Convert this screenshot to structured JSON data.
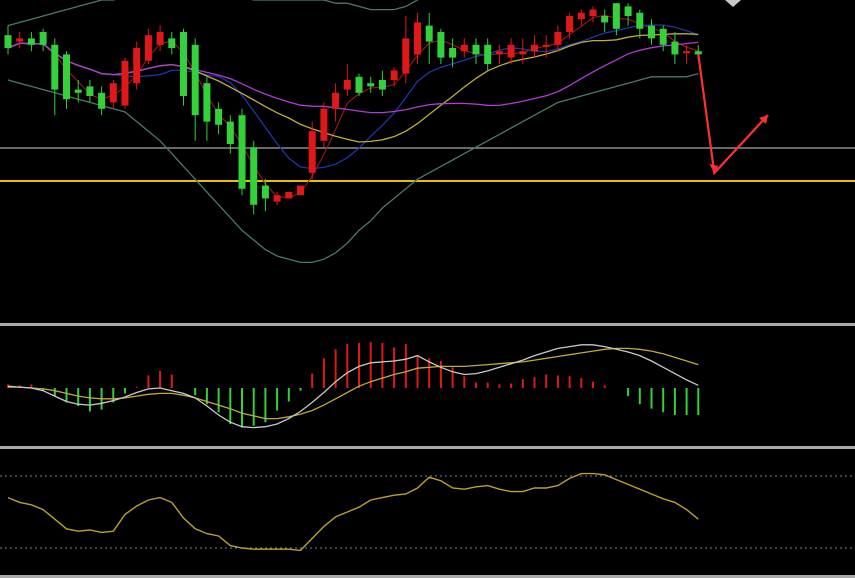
{
  "colors": {
    "background": "#000000",
    "up": "#e01818",
    "down": "#33d13a",
    "bb_band": "#4a7a62",
    "ma_magenta": "#b23bd6",
    "ma_blue": "#2233aa",
    "ma_khaki": "#bfae3a",
    "ma_red": "#a31616",
    "gray_line": "#a7a7a7",
    "gold_line": "#e6c000",
    "divider": "#a9a9a9",
    "arrow": "#ff3030",
    "macd_line": "#c9c9c9",
    "signal_line": "#c0a93a",
    "rsi_line": "#b9a12e"
  },
  "chart_data": [
    {
      "type": "candlestick",
      "title": "",
      "grid": false,
      "ylim": [
        0,
        100
      ],
      "x": [
        1,
        2,
        3,
        4,
        5,
        6,
        7,
        8,
        9,
        10,
        11,
        12,
        13,
        14,
        15,
        16,
        17,
        18,
        19,
        20,
        21,
        22,
        23,
        24,
        25,
        26,
        27,
        28,
        29,
        30,
        31,
        32,
        33,
        34,
        35,
        36,
        37,
        38,
        39,
        40,
        41,
        42,
        43,
        44,
        45,
        46,
        47,
        48,
        49,
        50,
        51,
        52,
        53,
        54,
        55,
        56,
        57,
        58,
        59,
        60
      ],
      "open": [
        89,
        87,
        88,
        90,
        86,
        83,
        72,
        73,
        71,
        68,
        67,
        74,
        81,
        86,
        88,
        90,
        86,
        74,
        66,
        62,
        64,
        54,
        42,
        37,
        38,
        39,
        46,
        56,
        66,
        72,
        76,
        74,
        75,
        75,
        77,
        83,
        92,
        90,
        85,
        84,
        86,
        86,
        83,
        82,
        83,
        84,
        86,
        86,
        90,
        94,
        95,
        95,
        99,
        98,
        96,
        92,
        91,
        87,
        84,
        84
      ],
      "close": [
        85,
        88,
        86,
        86,
        72,
        69,
        71,
        70,
        66,
        74,
        81,
        85,
        89,
        90,
        85,
        70,
        64,
        62,
        61,
        55,
        41,
        36,
        38,
        39,
        40,
        42,
        59,
        66,
        71,
        75,
        71,
        73,
        72,
        78,
        88,
        93,
        87,
        82,
        82,
        86,
        83,
        80,
        84,
        86,
        84,
        86,
        86,
        90,
        95,
        96,
        97,
        93,
        91,
        95,
        91,
        88,
        86,
        83,
        84,
        83
      ],
      "high": [
        92,
        90,
        90,
        91,
        88,
        84,
        75,
        75,
        73,
        75,
        82,
        87,
        91,
        92,
        90,
        91,
        88,
        76,
        68,
        64,
        66,
        56,
        44,
        40,
        40,
        42,
        62,
        68,
        74,
        80,
        77,
        76,
        78,
        79,
        95,
        96,
        96,
        91,
        88,
        88,
        88,
        88,
        86,
        88,
        88,
        89,
        89,
        92,
        96,
        97,
        98,
        97,
        99,
        99,
        97,
        94,
        92,
        90,
        86,
        86
      ],
      "low": [
        83,
        85,
        84,
        84,
        64,
        66,
        68,
        68,
        64,
        66,
        66,
        72,
        80,
        84,
        83,
        67,
        56,
        56,
        58,
        52,
        39,
        33,
        34,
        36,
        38,
        40,
        44,
        54,
        62,
        70,
        70,
        71,
        70,
        73,
        74,
        80,
        80,
        80,
        79,
        82,
        80,
        78,
        80,
        80,
        80,
        82,
        82,
        84,
        88,
        92,
        93,
        90,
        89,
        92,
        88,
        86,
        84,
        80,
        80,
        81
      ],
      "bollinger_upper": [
        92,
        93,
        94,
        95,
        96,
        97,
        98,
        99,
        100,
        100,
        101,
        101,
        101,
        102,
        102,
        102,
        102,
        102,
        101,
        101,
        101,
        100,
        100,
        100,
        100,
        100,
        100,
        100,
        99,
        99,
        98,
        97,
        97,
        97,
        98,
        100,
        103,
        106,
        109,
        110,
        111,
        112,
        113,
        114,
        114,
        115,
        116,
        116,
        117,
        118,
        118,
        118,
        118,
        118,
        118,
        119,
        120,
        121,
        122,
        123
      ],
      "bollinger_lower": [
        75,
        74,
        73,
        72,
        71,
        70,
        69,
        68,
        67,
        66,
        65,
        62,
        59,
        56,
        52,
        48,
        44,
        40,
        36,
        32,
        28,
        25,
        22,
        20,
        19,
        18,
        18,
        19,
        21,
        24,
        28,
        31,
        35,
        38,
        41,
        44,
        46,
        48,
        50,
        52,
        54,
        56,
        58,
        60,
        62,
        64,
        66,
        68,
        69,
        70,
        71,
        72,
        73,
        74,
        75,
        76,
        76,
        76,
        76,
        77
      ]
    },
    {
      "type": "bar",
      "title": "",
      "grid": false,
      "x": [
        1,
        2,
        3,
        4,
        5,
        6,
        7,
        8,
        9,
        10,
        11,
        12,
        13,
        14,
        15,
        16,
        17,
        18,
        19,
        20,
        21,
        22,
        23,
        24,
        25,
        26,
        27,
        28,
        29,
        30,
        31,
        32,
        33,
        34,
        35,
        36,
        37,
        38,
        39,
        40,
        41,
        42,
        43,
        44,
        45,
        46,
        47,
        48,
        49,
        50,
        51,
        52,
        53,
        54,
        55,
        56,
        57,
        58,
        59,
        60
      ],
      "values": [
        0.4,
        0.3,
        0.4,
        -0.3,
        -0.9,
        -1.6,
        -2.0,
        -2.6,
        -2.4,
        -1.6,
        -0.6,
        0.1,
        1.4,
        1.9,
        1.5,
        0,
        -0.8,
        -1.8,
        -2.7,
        -4.0,
        -4.4,
        -4.2,
        -3.8,
        -2.5,
        -1.5,
        -0.3,
        1.6,
        3.3,
        4.3,
        4.9,
        5.0,
        5.1,
        5.0,
        4.5,
        4.9,
        3.5,
        3.3,
        3.0,
        2.3,
        1.3,
        0.6,
        0.6,
        0.4,
        0.5,
        1.0,
        1.2,
        1.5,
        1.4,
        1.3,
        1.1,
        0.7,
        0.3,
        0,
        -0.9,
        -1.8,
        -2.3,
        -2.7,
        -3.0,
        -3.0,
        -3.0
      ],
      "macd_line": [
        0.2,
        0.1,
        0,
        -0.3,
        -0.9,
        -1.5,
        -1.8,
        -1.9,
        -1.7,
        -1.4,
        -1.0,
        -0.5,
        -0.1,
        0,
        -0.3,
        -0.6,
        -1.1,
        -2.0,
        -3.0,
        -3.8,
        -4.3,
        -4.4,
        -4.3,
        -4.0,
        -3.4,
        -2.6,
        -1.6,
        -0.5,
        0.7,
        1.7,
        2.4,
        2.8,
        2.9,
        3.0,
        3.2,
        3.6,
        2.9,
        2.3,
        1.8,
        1.5,
        1.6,
        1.9,
        2.3,
        2.7,
        3.1,
        3.6,
        4.0,
        4.4,
        4.6,
        4.8,
        4.8,
        4.6,
        4.3,
        4.0,
        3.6,
        3.0,
        2.3,
        1.6,
        0.9,
        0.3
      ],
      "signal_line": [
        0.1,
        0.1,
        0,
        -0.1,
        -0.3,
        -0.6,
        -0.9,
        -1.1,
        -1.2,
        -1.2,
        -1.1,
        -0.9,
        -0.7,
        -0.6,
        -0.6,
        -0.8,
        -1.1,
        -1.5,
        -1.9,
        -2.3,
        -2.8,
        -3.1,
        -3.4,
        -3.4,
        -3.2,
        -2.9,
        -2.5,
        -1.9,
        -1.2,
        -0.5,
        0.2,
        0.7,
        1.1,
        1.5,
        1.8,
        2.2,
        2.3,
        2.4,
        2.4,
        2.4,
        2.5,
        2.6,
        2.7,
        2.8,
        2.9,
        3.1,
        3.3,
        3.5,
        3.7,
        3.9,
        4.1,
        4.3,
        4.4,
        4.4,
        4.3,
        4.1,
        3.8,
        3.4,
        3.0,
        2.6
      ]
    },
    {
      "type": "line",
      "title": "",
      "grid": true,
      "x": [
        1,
        2,
        3,
        4,
        5,
        6,
        7,
        8,
        9,
        10,
        11,
        12,
        13,
        14,
        15,
        16,
        17,
        18,
        19,
        20,
        21,
        22,
        23,
        24,
        25,
        26,
        27,
        28,
        29,
        30,
        31,
        32,
        33,
        34,
        35,
        36,
        37,
        38,
        39,
        40,
        41,
        42,
        43,
        44,
        45,
        46,
        47,
        48,
        49,
        50,
        51,
        52,
        53,
        54,
        55,
        56,
        57,
        58,
        59,
        60
      ],
      "values": [
        62,
        58,
        56,
        52,
        44,
        36,
        34,
        35,
        33,
        34,
        48,
        55,
        60,
        62,
        58,
        45,
        36,
        32,
        30,
        22,
        20,
        19,
        19,
        19,
        19,
        18,
        28,
        38,
        46,
        50,
        54,
        60,
        62,
        64,
        65,
        70,
        79,
        76,
        70,
        69,
        71,
        72,
        69,
        67,
        67,
        70,
        70,
        72,
        78,
        82,
        82,
        81,
        77,
        73,
        69,
        65,
        61,
        58,
        52,
        44
      ]
    }
  ]
}
